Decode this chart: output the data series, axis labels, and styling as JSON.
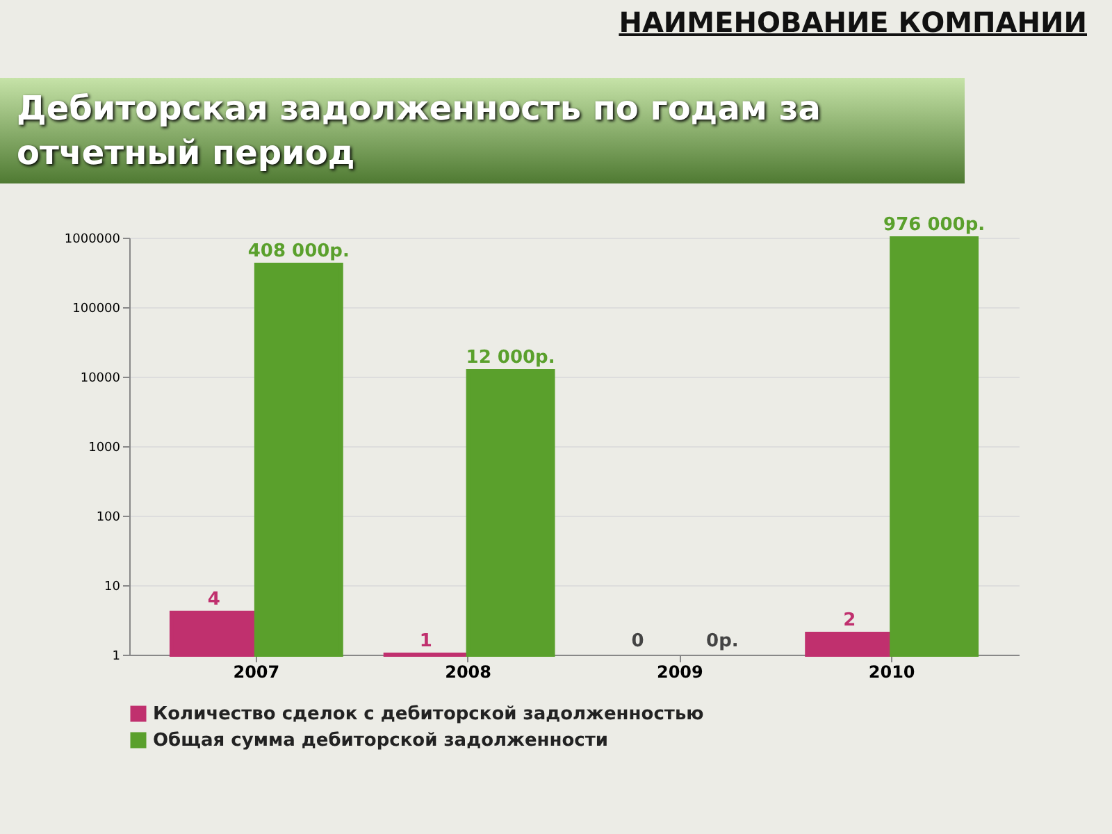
{
  "chart_data": {
    "type": "bar",
    "title": "Дебиторская задолженность по годам за отчетный период",
    "annotations": [
      "НАИМЕНОВАНИЕ КОМПАНИИ",
      "0",
      "0р."
    ],
    "categories": [
      "2007",
      "2008",
      "2009",
      "2010"
    ],
    "series": [
      {
        "name": "Количество сделок с дебиторской задолженностью",
        "color": "#c0306e",
        "values": [
          4,
          1,
          null,
          2
        ],
        "value_labels": [
          "4",
          "1",
          null,
          "2"
        ]
      },
      {
        "name": "Общая сумма дебиторской задолженности",
        "color": "#5aa02c",
        "values": [
          408000,
          12000,
          null,
          976000
        ],
        "value_labels": [
          "408 000р.",
          "12 000р.",
          null,
          "976 000р."
        ]
      }
    ],
    "log": true,
    "ylim": [
      1,
      1000000
    ],
    "yticks": [
      1,
      10,
      100,
      1000,
      10000,
      100000,
      1000000
    ],
    "grid": true,
    "legend": "bottom"
  }
}
